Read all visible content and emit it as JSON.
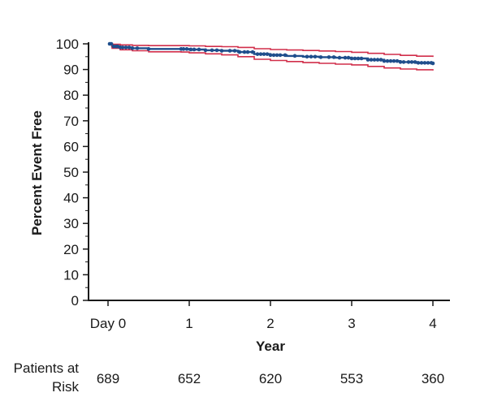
{
  "chart_data": {
    "type": "line",
    "ylabel": "Percent Event Free",
    "xlabel": "Year",
    "ylim": [
      0,
      100
    ],
    "xlim": [
      0,
      4
    ],
    "y_ticks": [
      "0",
      "10",
      "20",
      "30",
      "40",
      "50",
      "60",
      "70",
      "80",
      "90",
      "100"
    ],
    "x_ticks": [
      {
        "x": 0,
        "label": "Day 0"
      },
      {
        "x": 1,
        "label": "1"
      },
      {
        "x": 2,
        "label": "2"
      },
      {
        "x": 3,
        "label": "3"
      },
      {
        "x": 4,
        "label": "4"
      }
    ],
    "series": [
      {
        "role": "estimate",
        "color": "#1f4e8c",
        "x": [
          0,
          0.05,
          0.15,
          0.3,
          0.5,
          0.9,
          1.0,
          1.2,
          1.4,
          1.6,
          1.8,
          2.0,
          2.2,
          2.4,
          2.6,
          2.8,
          3.0,
          3.2,
          3.4,
          3.6,
          3.8,
          4.0
        ],
        "y": [
          100,
          99,
          98.6,
          98.3,
          98.0,
          98.0,
          97.8,
          97.5,
          97.3,
          96.8,
          96.0,
          95.6,
          95.3,
          95.0,
          94.8,
          94.6,
          94.3,
          93.8,
          93.3,
          92.9,
          92.6,
          92.4
        ]
      },
      {
        "role": "ci_upper",
        "color": "#d12e4a",
        "x": [
          0,
          0.05,
          0.15,
          0.3,
          0.5,
          0.9,
          1.0,
          1.2,
          1.4,
          1.6,
          1.8,
          2.0,
          2.2,
          2.4,
          2.6,
          2.8,
          3.0,
          3.2,
          3.4,
          3.6,
          3.8,
          4.0
        ],
        "y": [
          100,
          99.8,
          99.6,
          99.4,
          99.3,
          99.3,
          99.2,
          99.0,
          98.9,
          98.6,
          98.1,
          97.8,
          97.6,
          97.4,
          97.2,
          97.0,
          96.7,
          96.3,
          95.9,
          95.5,
          95.2,
          94.9
        ]
      },
      {
        "role": "ci_lower",
        "color": "#d12e4a",
        "x": [
          0,
          0.05,
          0.15,
          0.3,
          0.5,
          0.9,
          1.0,
          1.2,
          1.4,
          1.6,
          1.8,
          2.0,
          2.2,
          2.4,
          2.6,
          2.8,
          3.0,
          3.2,
          3.4,
          3.6,
          3.8,
          4.0
        ],
        "y": [
          100,
          98.3,
          97.7,
          97.3,
          96.9,
          96.8,
          96.5,
          96.1,
          95.7,
          95.0,
          94.0,
          93.5,
          93.1,
          92.7,
          92.4,
          92.1,
          91.8,
          91.2,
          90.6,
          90.2,
          89.9,
          89.6
        ]
      }
    ],
    "censor_x": [
      0.02,
      0.04,
      0.07,
      0.1,
      0.12,
      0.15,
      0.18,
      0.22,
      0.26,
      0.3,
      0.36,
      0.5,
      0.9,
      0.93,
      0.97,
      1.02,
      1.06,
      1.12,
      1.2,
      1.28,
      1.34,
      1.4,
      1.5,
      1.56,
      1.62,
      1.68,
      1.72,
      1.78,
      1.84,
      1.88,
      1.92,
      1.96,
      2.0,
      2.04,
      2.08,
      2.12,
      2.18,
      2.3,
      2.45,
      2.5,
      2.55,
      2.62,
      2.72,
      2.78,
      2.85,
      2.92,
      2.96,
      3.0,
      3.04,
      3.08,
      3.12,
      3.2,
      3.24,
      3.28,
      3.32,
      3.36,
      3.4,
      3.44,
      3.48,
      3.52,
      3.56,
      3.6,
      3.64,
      3.7,
      3.74,
      3.78,
      3.82,
      3.86,
      3.9,
      3.94,
      3.98,
      4.0
    ],
    "risk_table": {
      "label_line1": "Patients at",
      "label_line2": "Risk",
      "values": [
        {
          "x": 0,
          "value": "689"
        },
        {
          "x": 1,
          "value": "652"
        },
        {
          "x": 2,
          "value": "620"
        },
        {
          "x": 3,
          "value": "553"
        },
        {
          "x": 4,
          "value": "360"
        }
      ]
    }
  }
}
